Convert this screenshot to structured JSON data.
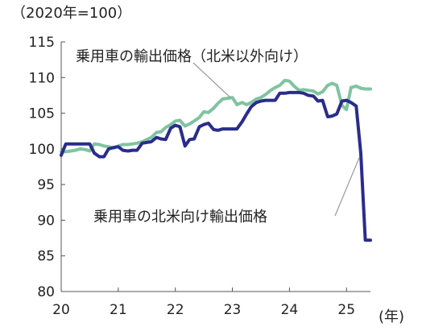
{
  "chart_data": {
    "type": "line",
    "unit_label": "（2020年=100）",
    "x_unit_label": "(年)",
    "xlim": [
      2020.0,
      2025.42
    ],
    "ylim": [
      80,
      115
    ],
    "x_ticks": [
      2020,
      2021,
      2022,
      2023,
      2024,
      2025
    ],
    "x_tick_labels": [
      "20",
      "21",
      "22",
      "23",
      "24",
      "25"
    ],
    "y_ticks": [
      80,
      85,
      90,
      95,
      100,
      105,
      110,
      115
    ],
    "y_tick_labels": [
      "80",
      "85",
      "90",
      "95",
      "100",
      "105",
      "110",
      "115"
    ],
    "grid": false,
    "legend": "direct labels with leader lines",
    "series": [
      {
        "name": "乗用車の輸出価格（北米以外向け）",
        "color": "#7fc4a0",
        "x": [
          2020.0,
          2020.08,
          2020.17,
          2020.25,
          2020.33,
          2020.42,
          2020.5,
          2020.58,
          2020.67,
          2020.75,
          2020.83,
          2020.92,
          2021.0,
          2021.08,
          2021.17,
          2021.25,
          2021.33,
          2021.42,
          2021.5,
          2021.58,
          2021.67,
          2021.75,
          2021.83,
          2021.92,
          2022.0,
          2022.08,
          2022.17,
          2022.25,
          2022.33,
          2022.42,
          2022.5,
          2022.58,
          2022.67,
          2022.75,
          2022.83,
          2022.92,
          2023.0,
          2023.08,
          2023.17,
          2023.25,
          2023.33,
          2023.42,
          2023.5,
          2023.58,
          2023.67,
          2023.75,
          2023.83,
          2023.92,
          2024.0,
          2024.08,
          2024.17,
          2024.25,
          2024.33,
          2024.42,
          2024.5,
          2024.58,
          2024.67,
          2024.75,
          2024.83,
          2024.92,
          2025.0,
          2025.08,
          2025.17,
          2025.25,
          2025.33,
          2025.42
        ],
        "values": [
          99.6,
          99.6,
          99.7,
          99.8,
          100.0,
          99.9,
          99.7,
          100.7,
          100.6,
          100.4,
          100.3,
          100.1,
          100.4,
          100.6,
          100.6,
          100.7,
          100.8,
          101.0,
          101.3,
          101.6,
          102.3,
          102.4,
          103.0,
          103.4,
          103.9,
          104.0,
          103.2,
          103.5,
          103.9,
          104.4,
          105.2,
          105.1,
          105.7,
          106.4,
          107.0,
          107.1,
          107.2,
          106.2,
          106.5,
          106.2,
          106.5,
          107.0,
          107.2,
          107.6,
          108.2,
          108.6,
          108.9,
          109.6,
          109.5,
          108.8,
          108.2,
          108.3,
          108.2,
          108.1,
          107.7,
          108.0,
          108.9,
          109.2,
          108.9,
          106.1,
          105.5,
          108.6,
          108.8,
          108.5,
          108.4,
          108.4
        ]
      },
      {
        "name": "乗用車の北米向け輸出価格",
        "color": "#2a2c8c",
        "x": [
          2020.0,
          2020.08,
          2020.17,
          2020.25,
          2020.33,
          2020.42,
          2020.5,
          2020.58,
          2020.67,
          2020.75,
          2020.83,
          2020.92,
          2021.0,
          2021.08,
          2021.17,
          2021.25,
          2021.33,
          2021.42,
          2021.5,
          2021.58,
          2021.67,
          2021.75,
          2021.83,
          2021.92,
          2022.0,
          2022.08,
          2022.17,
          2022.25,
          2022.33,
          2022.42,
          2022.5,
          2022.58,
          2022.67,
          2022.75,
          2022.83,
          2022.92,
          2023.0,
          2023.08,
          2023.17,
          2023.25,
          2023.33,
          2023.42,
          2023.5,
          2023.58,
          2023.67,
          2023.75,
          2023.83,
          2023.92,
          2024.0,
          2024.08,
          2024.17,
          2024.25,
          2024.33,
          2024.42,
          2024.5,
          2024.58,
          2024.67,
          2024.75,
          2024.83,
          2024.92,
          2025.0,
          2025.08,
          2025.17,
          2025.25,
          2025.33,
          2025.42
        ],
        "values": [
          99.1,
          100.7,
          100.7,
          100.7,
          100.7,
          100.7,
          100.7,
          99.4,
          98.9,
          98.9,
          100.0,
          100.2,
          100.3,
          99.8,
          99.7,
          99.8,
          99.8,
          100.8,
          100.9,
          101.0,
          101.6,
          101.4,
          101.3,
          102.9,
          103.3,
          103.1,
          100.4,
          101.3,
          101.4,
          103.1,
          103.4,
          103.6,
          102.7,
          102.6,
          102.8,
          102.8,
          102.8,
          102.8,
          103.8,
          104.9,
          105.9,
          106.5,
          106.7,
          106.8,
          106.8,
          106.8,
          107.8,
          107.8,
          107.9,
          107.9,
          107.9,
          107.8,
          107.5,
          107.4,
          106.7,
          106.8,
          104.5,
          104.6,
          104.9,
          106.7,
          106.8,
          106.5,
          106.0,
          99.4,
          87.2,
          87.2
        ]
      }
    ],
    "annotations": [
      {
        "text": "乗用車の輸出価格（北米以外向け）",
        "series": 0
      },
      {
        "text": "乗用車の北米向け輸出価格",
        "series": 1
      }
    ]
  }
}
